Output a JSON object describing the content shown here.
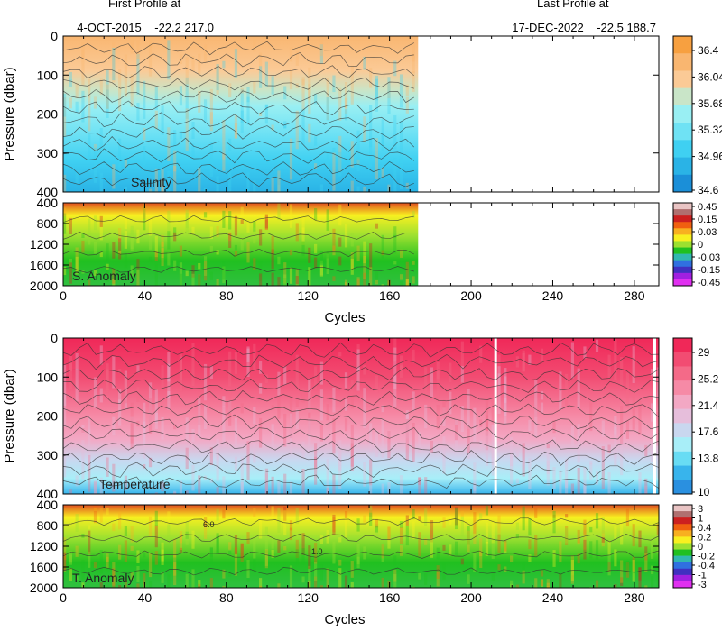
{
  "header": {
    "first_label": "First Profile at",
    "first_date": "4-OCT-2015",
    "first_lat": "-22.2",
    "first_lon": "217.0",
    "last_label": "Last Profile at",
    "last_date": "17-DEC-2022",
    "last_lat": "-22.5",
    "last_lon": "188.7"
  },
  "chart_data": [
    {
      "type": "heatmap",
      "title": "Salinity",
      "ylabel": "Pressure (dbar)",
      "xlabel": "",
      "xlim": [
        0,
        292
      ],
      "ylim": [
        400,
        0
      ],
      "yticks": [
        0,
        100,
        200,
        300,
        400
      ],
      "data_extent_cycles": [
        0,
        174
      ],
      "colorbar_labels": [
        "36.4",
        "36.04",
        "35.68",
        "35.32",
        "34.96",
        "34.6"
      ],
      "colorbar_colors": [
        "#f7a040",
        "#f9b670",
        "#fbca96",
        "#c9e5c8",
        "#99eff3",
        "#6fe2f4",
        "#3fd0f2",
        "#2ab3e6",
        "#1b8fd8"
      ],
      "grid": false
    },
    {
      "type": "heatmap",
      "title": "S. Anomaly",
      "ylabel": "",
      "xlabel": "Cycles",
      "xlim": [
        0,
        292
      ],
      "ylim": [
        2000,
        400
      ],
      "yticks": [
        400,
        800,
        1200,
        1600,
        2000
      ],
      "xticks": [
        0,
        40,
        80,
        120,
        160,
        200,
        240,
        280
      ],
      "data_extent_cycles": [
        0,
        174
      ],
      "colorbar_labels": [
        "0.45",
        "0.15",
        "0.03",
        "0",
        "-0.03",
        "-0.15",
        "-0.45"
      ],
      "colorbar_colors": [
        "#e9c4c4",
        "#b07070",
        "#cc2020",
        "#f06010",
        "#f8b020",
        "#f8f020",
        "#9ce030",
        "#20c020",
        "#30b8b0",
        "#3070e0",
        "#4030c0",
        "#a020e0",
        "#e030f0"
      ]
    },
    {
      "type": "heatmap",
      "title": "Temperature",
      "ylabel": "Pressure (dbar)",
      "xlabel": "",
      "xlim": [
        0,
        292
      ],
      "ylim": [
        400,
        0
      ],
      "yticks": [
        0,
        100,
        200,
        300,
        400
      ],
      "data_extent_cycles": [
        0,
        292
      ],
      "colorbar_labels": [
        "29",
        "25.2",
        "21.4",
        "17.6",
        "13.8",
        "10"
      ],
      "colorbar_colors": [
        "#f02858",
        "#f24c72",
        "#f46a88",
        "#f68aa6",
        "#f3a8c4",
        "#e6bedb",
        "#c9d7ef",
        "#a8eef8",
        "#68dcf4",
        "#38b4ec",
        "#2a90e0"
      ],
      "gaps_cycles": [
        212,
        290
      ]
    },
    {
      "type": "heatmap",
      "title": "T. Anomaly",
      "ylabel": "",
      "xlabel": "Cycles",
      "xlim": [
        0,
        292
      ],
      "ylim": [
        2000,
        400
      ],
      "yticks": [
        400,
        800,
        1200,
        1600,
        2000
      ],
      "xticks": [
        0,
        40,
        80,
        120,
        160,
        200,
        240,
        280
      ],
      "data_extent_cycles": [
        0,
        292
      ],
      "colorbar_labels": [
        "3",
        "1",
        "0.4",
        "0.2",
        "0",
        "-0.2",
        "-0.4",
        "-1",
        "-3"
      ],
      "colorbar_colors": [
        "#e9c4c4",
        "#b07070",
        "#cc2020",
        "#f06010",
        "#f8b020",
        "#f8f020",
        "#9ce030",
        "#20c020",
        "#30b8b0",
        "#3070e0",
        "#4030c0",
        "#a020e0",
        "#e030f0"
      ],
      "contour_labels": [
        "6.0",
        "1.0"
      ]
    }
  ]
}
